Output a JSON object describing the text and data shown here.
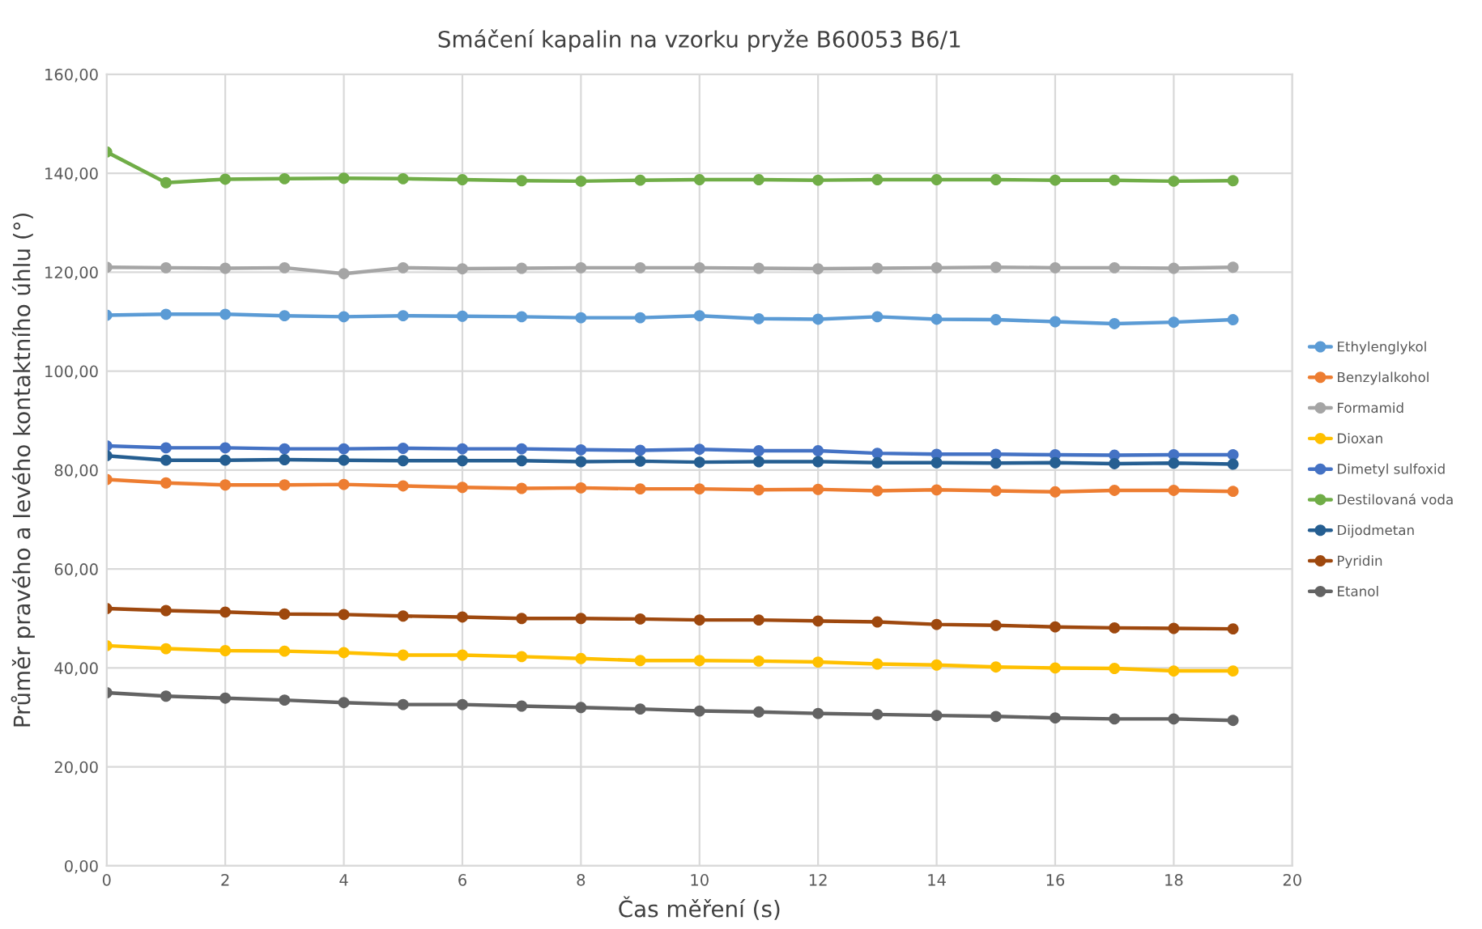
{
  "chart_data": {
    "type": "line",
    "title": "Smáčení kapalin na vzorku pryže B60053 B6/1",
    "xlabel": "Čas měření (s)",
    "ylabel": "Průměr pravého a levého kontaktního úhlu (°)",
    "x": [
      0,
      1,
      2,
      3,
      4,
      5,
      6,
      7,
      8,
      9,
      10,
      11,
      12,
      13,
      14,
      15,
      16,
      17,
      18,
      19
    ],
    "xlim": [
      0,
      20
    ],
    "xticks": [
      0,
      2,
      4,
      6,
      8,
      10,
      12,
      14,
      16,
      18,
      20
    ],
    "ylim": [
      0,
      160
    ],
    "yticks": [
      {
        "value": 0,
        "label": "0,00"
      },
      {
        "value": 20,
        "label": "20,00"
      },
      {
        "value": 40,
        "label": "40,00"
      },
      {
        "value": 60,
        "label": "60,00"
      },
      {
        "value": 80,
        "label": "80,00"
      },
      {
        "value": 100,
        "label": "100,00"
      },
      {
        "value": 120,
        "label": "120,00"
      },
      {
        "value": 140,
        "label": "140,00"
      },
      {
        "value": 160,
        "label": "160,00"
      }
    ],
    "grid": true,
    "legend": "right",
    "marker": "circle",
    "line_style": "solid",
    "series": [
      {
        "name": "Ethylenglykol",
        "color": "#5b9bd5",
        "values": [
          111.3,
          111.5,
          111.5,
          111.2,
          111.0,
          111.2,
          111.1,
          111.0,
          110.8,
          110.8,
          111.2,
          110.6,
          110.5,
          111.0,
          110.5,
          110.4,
          110.0,
          109.6,
          109.9,
          110.4
        ]
      },
      {
        "name": "Benzylalkohol",
        "color": "#ed7d31",
        "values": [
          78.1,
          77.4,
          77.0,
          77.0,
          77.1,
          76.8,
          76.5,
          76.3,
          76.4,
          76.2,
          76.2,
          76.0,
          76.1,
          75.8,
          76.0,
          75.8,
          75.6,
          75.9,
          75.9,
          75.7
        ]
      },
      {
        "name": "Formamid",
        "color": "#a5a5a5",
        "values": [
          121.0,
          120.9,
          120.8,
          120.9,
          119.7,
          120.9,
          120.7,
          120.8,
          120.9,
          120.9,
          120.9,
          120.8,
          120.7,
          120.8,
          120.9,
          121.0,
          120.9,
          120.9,
          120.8,
          121.0
        ]
      },
      {
        "name": "Dioxan",
        "color": "#ffc000",
        "values": [
          44.5,
          43.9,
          43.5,
          43.4,
          43.1,
          42.6,
          42.6,
          42.3,
          41.9,
          41.5,
          41.5,
          41.4,
          41.2,
          40.8,
          40.6,
          40.2,
          40.0,
          39.9,
          39.4,
          39.4
        ]
      },
      {
        "name": "Dimetyl sulfoxid",
        "color": "#4472c4",
        "values": [
          84.9,
          84.5,
          84.5,
          84.3,
          84.3,
          84.4,
          84.3,
          84.3,
          84.1,
          84.0,
          84.2,
          83.9,
          83.9,
          83.4,
          83.2,
          83.2,
          83.1,
          83.0,
          83.1,
          83.1
        ]
      },
      {
        "name": "Destilovaná voda",
        "color": "#70ad47",
        "values": [
          144.3,
          138.1,
          138.8,
          138.9,
          139.0,
          138.9,
          138.7,
          138.5,
          138.4,
          138.6,
          138.7,
          138.7,
          138.6,
          138.7,
          138.7,
          138.7,
          138.6,
          138.6,
          138.4,
          138.5
        ]
      },
      {
        "name": "Dijodmetan",
        "color": "#255e91",
        "values": [
          82.9,
          82.0,
          82.0,
          82.1,
          82.0,
          81.9,
          81.9,
          81.9,
          81.7,
          81.8,
          81.6,
          81.7,
          81.7,
          81.5,
          81.5,
          81.4,
          81.5,
          81.3,
          81.4,
          81.2
        ]
      },
      {
        "name": "Pyridin",
        "color": "#9e480e",
        "values": [
          52.0,
          51.6,
          51.3,
          50.9,
          50.8,
          50.5,
          50.3,
          50.0,
          50.0,
          49.9,
          49.7,
          49.7,
          49.5,
          49.3,
          48.8,
          48.6,
          48.3,
          48.1,
          48.0,
          47.9
        ]
      },
      {
        "name": "Etanol",
        "color": "#636363",
        "values": [
          35.0,
          34.3,
          33.9,
          33.5,
          33.0,
          32.6,
          32.6,
          32.3,
          32.0,
          31.7,
          31.3,
          31.1,
          30.8,
          30.6,
          30.4,
          30.2,
          29.9,
          29.7,
          29.7,
          29.4
        ]
      }
    ]
  }
}
